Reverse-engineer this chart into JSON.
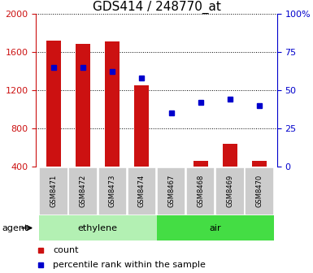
{
  "title": "GDS414 / 248770_at",
  "samples": [
    "GSM8471",
    "GSM8472",
    "GSM8473",
    "GSM8474",
    "GSM8467",
    "GSM8468",
    "GSM8469",
    "GSM8470"
  ],
  "counts": [
    1720,
    1680,
    1710,
    1250,
    370,
    460,
    640,
    460
  ],
  "percentile_ranks": [
    65,
    65,
    62,
    58,
    35,
    42,
    44,
    40
  ],
  "groups": [
    {
      "label": "ethylene",
      "indices": [
        0,
        1,
        2,
        3
      ],
      "color": "#b3f0b3"
    },
    {
      "label": "air",
      "indices": [
        4,
        5,
        6,
        7
      ],
      "color": "#44dd44"
    }
  ],
  "bar_color": "#cc1111",
  "dot_color": "#0000cc",
  "ylim_left": [
    400,
    2000
  ],
  "ylim_right": [
    0,
    100
  ],
  "yticks_left": [
    400,
    800,
    1200,
    1600,
    2000
  ],
  "yticks_right": [
    0,
    25,
    50,
    75,
    100
  ],
  "legend_count_label": "count",
  "legend_pct_label": "percentile rank within the sample",
  "agent_label": "agent",
  "bg_color": "#ffffff",
  "bar_color_left": "#cc1111",
  "dot_color_right": "#0000cc",
  "bar_width": 0.5,
  "title_fontsize": 11,
  "axis_fontsize": 8,
  "legend_fontsize": 8,
  "sample_box_color": "#cccccc",
  "sample_text_fontsize": 6
}
